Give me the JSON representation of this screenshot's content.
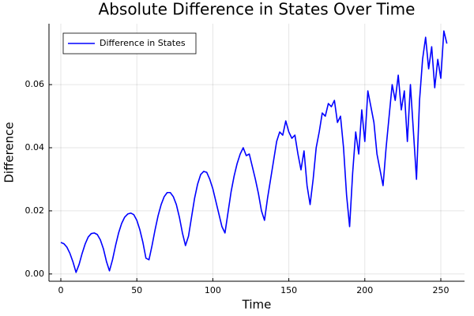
{
  "chart_data": {
    "type": "line",
    "title": "Absolute Difference in States Over Time",
    "x_label": "Time",
    "y_label": "Difference",
    "x": [
      0,
      2,
      4,
      6,
      8,
      10,
      12,
      14,
      16,
      18,
      20,
      22,
      24,
      26,
      28,
      30,
      32,
      34,
      36,
      38,
      40,
      42,
      44,
      46,
      48,
      50,
      52,
      54,
      56,
      58,
      60,
      62,
      64,
      66,
      68,
      70,
      72,
      74,
      76,
      78,
      80,
      82,
      84,
      86,
      88,
      90,
      92,
      94,
      96,
      98,
      100,
      102,
      104,
      106,
      108,
      110,
      112,
      114,
      116,
      118,
      120,
      122,
      124,
      126,
      128,
      130,
      132,
      134,
      136,
      138,
      140,
      142,
      144,
      146,
      148,
      150,
      152,
      154,
      156,
      158,
      160,
      162,
      164,
      166,
      168,
      170,
      172,
      174,
      176,
      178,
      180,
      182,
      184,
      186,
      188,
      190,
      192,
      194,
      196,
      198,
      200,
      202,
      204,
      206,
      208,
      210,
      212,
      214,
      216,
      218,
      220,
      222,
      224,
      226,
      228,
      230,
      232,
      234,
      236,
      238,
      240,
      242,
      244,
      246,
      248,
      250,
      252,
      254
    ],
    "series": [
      {
        "name": "Difference in States",
        "color": "#0000ff",
        "values": [
          0.01,
          0.0096,
          0.0085,
          0.0065,
          0.0038,
          0.0005,
          0.003,
          0.0065,
          0.0095,
          0.0117,
          0.0128,
          0.013,
          0.0125,
          0.0108,
          0.008,
          0.004,
          0.001,
          0.0045,
          0.009,
          0.013,
          0.016,
          0.018,
          0.019,
          0.0193,
          0.0188,
          0.017,
          0.014,
          0.01,
          0.005,
          0.0045,
          0.009,
          0.014,
          0.0185,
          0.022,
          0.0245,
          0.0258,
          0.0258,
          0.0245,
          0.022,
          0.018,
          0.013,
          0.009,
          0.012,
          0.018,
          0.024,
          0.0285,
          0.0315,
          0.0325,
          0.0322,
          0.03,
          0.027,
          0.023,
          0.019,
          0.015,
          0.013,
          0.0195,
          0.026,
          0.031,
          0.035,
          0.038,
          0.04,
          0.0375,
          0.038,
          0.034,
          0.03,
          0.0255,
          0.02,
          0.017,
          0.024,
          0.03,
          0.036,
          0.042,
          0.045,
          0.044,
          0.0485,
          0.045,
          0.043,
          0.044,
          0.038,
          0.033,
          0.039,
          0.028,
          0.022,
          0.03,
          0.04,
          0.045,
          0.051,
          0.05,
          0.054,
          0.053,
          0.055,
          0.048,
          0.05,
          0.04,
          0.025,
          0.015,
          0.032,
          0.045,
          0.038,
          0.052,
          0.042,
          0.058,
          0.053,
          0.048,
          0.038,
          0.033,
          0.028,
          0.04,
          0.05,
          0.06,
          0.055,
          0.063,
          0.052,
          0.058,
          0.042,
          0.06,
          0.045,
          0.03,
          0.055,
          0.068,
          0.075,
          0.065,
          0.072,
          0.059,
          0.068,
          0.062,
          0.077,
          0.073
        ]
      }
    ],
    "xlim": [
      -7.8,
      265.6
    ],
    "xticks": [
      0,
      50,
      100,
      150,
      200,
      250
    ],
    "ylim": [
      -0.0023,
      0.0793
    ],
    "yticks": [
      {
        "value": 0,
        "label": "0.00"
      },
      0.02,
      0.04,
      0.06
    ],
    "grid": true,
    "legend": "top-left"
  }
}
